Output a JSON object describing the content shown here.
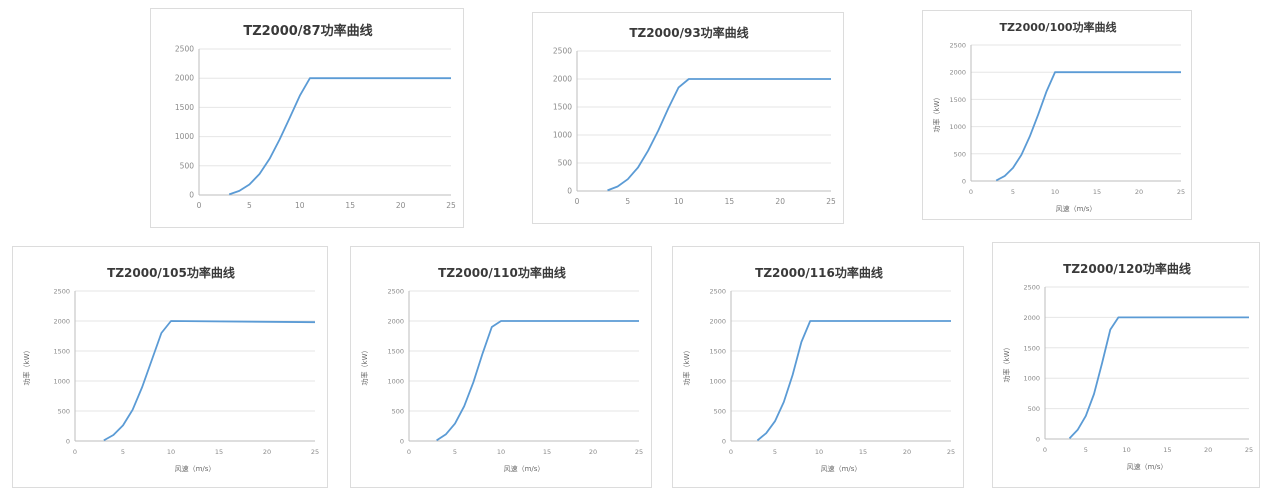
{
  "line_color": "#5b9bd5",
  "grid_color": "#e6e6e6",
  "chart_data": [
    {
      "type": "line",
      "title": "TZ2000/87功率曲线",
      "xlabel": "",
      "ylabel": "",
      "xlim": [
        0,
        25
      ],
      "ylim": [
        0,
        2500
      ],
      "xticks": [
        "0",
        "5",
        "10",
        "15",
        "20",
        "25"
      ],
      "yticks": [
        "0",
        "500",
        "1000",
        "1500",
        "2000",
        "2500"
      ],
      "series": [
        {
          "x": [
            3,
            4,
            5,
            6,
            7,
            8,
            9,
            10,
            11,
            25
          ],
          "y": [
            10,
            70,
            180,
            360,
            620,
            950,
            1320,
            1700,
            2000,
            2000
          ]
        }
      ]
    },
    {
      "type": "line",
      "title": "TZ2000/93功率曲线",
      "xlabel": "",
      "ylabel": "",
      "xlim": [
        0,
        25
      ],
      "ylim": [
        0,
        2500
      ],
      "xticks": [
        "0",
        "5",
        "10",
        "15",
        "20",
        "25"
      ],
      "yticks": [
        "0",
        "500",
        "1000",
        "1500",
        "2000",
        "2500"
      ],
      "series": [
        {
          "x": [
            3,
            4,
            5,
            6,
            7,
            8,
            9,
            10,
            11,
            25
          ],
          "y": [
            10,
            80,
            210,
            420,
            720,
            1080,
            1480,
            1850,
            2000,
            2000
          ]
        }
      ]
    },
    {
      "type": "line",
      "title": "TZ2000/100功率曲线",
      "xlabel": "风速（m/s）",
      "ylabel": "功率（kW）",
      "xlim": [
        0,
        25
      ],
      "ylim": [
        0,
        2500
      ],
      "xticks": [
        "0",
        "5",
        "10",
        "15",
        "20",
        "25"
      ],
      "yticks": [
        "0",
        "500",
        "1000",
        "1500",
        "2000",
        "2500"
      ],
      "series": [
        {
          "x": [
            3,
            4,
            5,
            6,
            7,
            8,
            9,
            10,
            25
          ],
          "y": [
            10,
            90,
            240,
            480,
            820,
            1220,
            1650,
            2000,
            2000
          ]
        }
      ]
    },
    {
      "type": "line",
      "title": "TZ2000/105功率曲线",
      "xlabel": "风速（m/s）",
      "ylabel": "功率（kW）",
      "xlim": [
        0,
        25
      ],
      "ylim": [
        0,
        2500
      ],
      "xticks": [
        "0",
        "5",
        "10",
        "15",
        "20",
        "25"
      ],
      "yticks": [
        "0",
        "500",
        "1000",
        "1500",
        "2000",
        "2500"
      ],
      "series": [
        {
          "x": [
            3,
            4,
            5,
            6,
            7,
            8,
            9,
            10,
            25
          ],
          "y": [
            10,
            100,
            260,
            520,
            900,
            1350,
            1800,
            2000,
            1980
          ]
        }
      ]
    },
    {
      "type": "line",
      "title": "TZ2000/110功率曲线",
      "xlabel": "风速（m/s）",
      "ylabel": "功率（kW）",
      "xlim": [
        0,
        25
      ],
      "ylim": [
        0,
        2500
      ],
      "xticks": [
        "0",
        "5",
        "10",
        "15",
        "20",
        "25"
      ],
      "yticks": [
        "0",
        "500",
        "1000",
        "1500",
        "2000",
        "2500"
      ],
      "series": [
        {
          "x": [
            3,
            4,
            5,
            6,
            7,
            8,
            9,
            10,
            25
          ],
          "y": [
            10,
            110,
            290,
            580,
            980,
            1460,
            1900,
            2000,
            2000
          ]
        }
      ]
    },
    {
      "type": "line",
      "title": "TZ2000/116功率曲线",
      "xlabel": "风速（m/s）",
      "ylabel": "功率（kW）",
      "xlim": [
        0,
        25
      ],
      "ylim": [
        0,
        2500
      ],
      "xticks": [
        "0",
        "5",
        "10",
        "15",
        "20",
        "25"
      ],
      "yticks": [
        "0",
        "500",
        "1000",
        "1500",
        "2000",
        "2500"
      ],
      "series": [
        {
          "x": [
            3,
            4,
            5,
            6,
            7,
            8,
            9,
            25
          ],
          "y": [
            10,
            130,
            330,
            650,
            1100,
            1650,
            2000,
            2000
          ]
        }
      ]
    },
    {
      "type": "line",
      "title": "TZ2000/120功率曲线",
      "xlabel": "风速（m/s）",
      "ylabel": "功率（kW）",
      "xlim": [
        0,
        25
      ],
      "ylim": [
        0,
        2500
      ],
      "xticks": [
        "0",
        "5",
        "10",
        "15",
        "20",
        "25"
      ],
      "yticks": [
        "0",
        "500",
        "1000",
        "1500",
        "2000",
        "2500"
      ],
      "series": [
        {
          "x": [
            3,
            4,
            5,
            6,
            7,
            8,
            9,
            25
          ],
          "y": [
            10,
            150,
            380,
            740,
            1250,
            1800,
            2000,
            2000
          ]
        }
      ]
    }
  ]
}
